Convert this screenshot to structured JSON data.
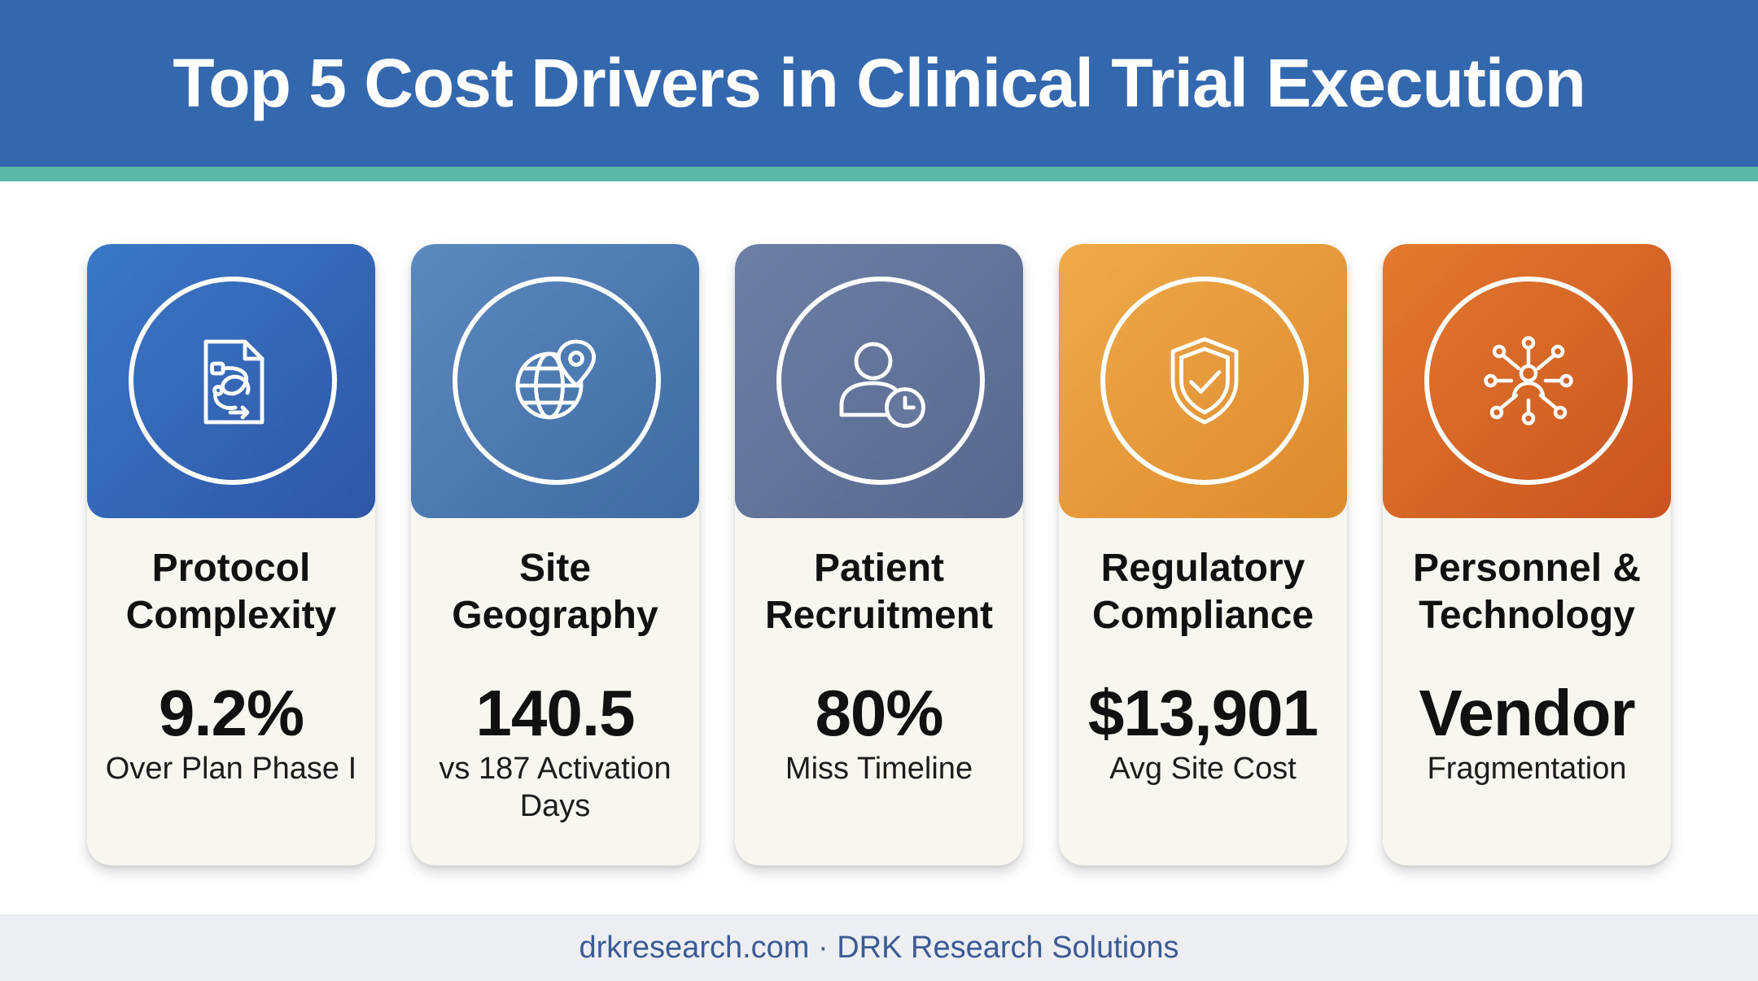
{
  "header": {
    "title": "Top 5 Cost Drivers in Clinical Trial Execution"
  },
  "cards": [
    {
      "title_line1": "Protocol",
      "title_line2": "Complexity",
      "value": "9.2%",
      "subtitle_line1": "Over Plan Phase I",
      "subtitle_line2": "",
      "icon": "document-workflow-icon",
      "color_top": "#3a78c8",
      "color_bottom": "#2f56a6"
    },
    {
      "title_line1": "Site",
      "title_line2": "Geography",
      "value": "140.5",
      "subtitle_line1": "vs 187 Activation",
      "subtitle_line2": "Days",
      "icon": "globe-location-icon",
      "color_top": "#5b8abf",
      "color_bottom": "#3f6aa3"
    },
    {
      "title_line1": "Patient",
      "title_line2": "Recruitment",
      "value": "80%",
      "subtitle_line1": "Miss Timeline",
      "subtitle_line2": "",
      "icon": "user-clock-icon",
      "color_top": "#6e7fa6",
      "color_bottom": "#57688f"
    },
    {
      "title_line1": "Regulatory",
      "title_line2": "Compliance",
      "value": "$13,901",
      "subtitle_line1": "Avg Site Cost",
      "subtitle_line2": "",
      "icon": "shield-check-icon",
      "color_top": "#efaa4a",
      "color_bottom": "#dd8a2c"
    },
    {
      "title_line1": "Personnel &",
      "title_line2": "Technology",
      "value": "Vendor",
      "subtitle_line1": "Fragmentation",
      "subtitle_line2": "",
      "icon": "network-person-icon",
      "color_top": "#e37a2e",
      "color_bottom": "#c9531f"
    }
  ],
  "footer": {
    "text": "drkresearch.com · DRK Research Solutions"
  }
}
